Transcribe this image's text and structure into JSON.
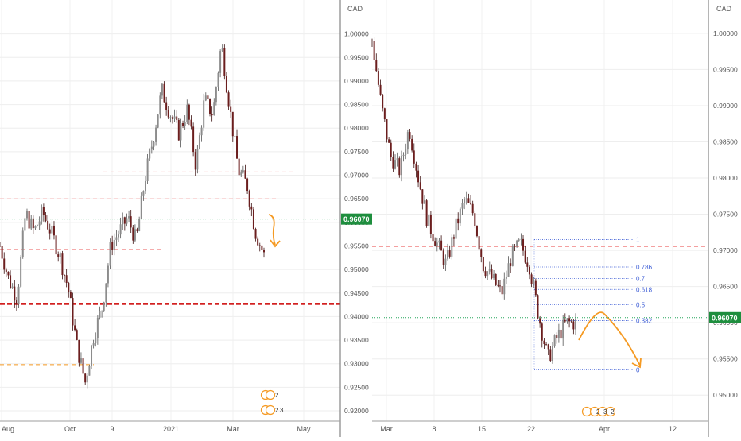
{
  "chart_data": [
    {
      "type": "candlestick",
      "currency": "CAD",
      "y_ticks": [
        "1.00000",
        "0.99500",
        "0.99000",
        "0.98500",
        "0.98000",
        "0.97500",
        "0.97000",
        "0.96500",
        "0.96000",
        "0.95500",
        "0.95000",
        "0.94500",
        "0.94000",
        "0.93500",
        "0.93000",
        "0.92500",
        "0.92000"
      ],
      "y_tick_values": [
        1.0,
        0.995,
        0.99,
        0.985,
        0.98,
        0.975,
        0.97,
        0.965,
        0.96,
        0.955,
        0.95,
        0.945,
        0.94,
        0.935,
        0.93,
        0.925,
        0.92
      ],
      "ylim": [
        0.9195,
        1.0055
      ],
      "x_labels": [
        "Aug",
        "Oct",
        "9",
        "2021",
        "Mar",
        "May"
      ],
      "current_price": "0.96070",
      "current_value": 0.9607,
      "close_path": [
        [
          "Aug",
          0.955
        ],
        [
          "",
          0.948
        ],
        [
          "",
          0.944
        ],
        [
          "",
          0.962
        ],
        [
          "",
          0.958
        ],
        [
          "",
          0.962
        ],
        [
          "",
          0.958
        ],
        [
          "",
          0.953
        ],
        [
          "Oct",
          0.946
        ],
        [
          "",
          0.934
        ],
        [
          "",
          0.926
        ],
        [
          "",
          0.936
        ],
        [
          "9",
          0.942
        ],
        [
          "",
          0.955
        ],
        [
          "",
          0.958
        ],
        [
          "",
          0.961
        ],
        [
          "",
          0.956
        ],
        [
          "",
          0.969
        ],
        [
          "",
          0.978
        ],
        [
          "2021",
          0.988
        ],
        [
          "",
          0.983
        ],
        [
          "",
          0.979
        ],
        [
          "",
          0.984
        ],
        [
          "",
          0.972
        ],
        [
          "",
          0.986
        ],
        [
          "",
          0.983
        ],
        [
          "Mar",
          0.998
        ],
        [
          "",
          0.984
        ],
        [
          "",
          0.971
        ],
        [
          "",
          0.968
        ],
        [
          "",
          0.958
        ],
        [
          "",
          0.953
        ]
      ],
      "levels": [
        {
          "value": 0.9707,
          "style": "dashed",
          "color": "#f4a0a0"
        },
        {
          "value": 0.965,
          "style": "dashed",
          "color": "#f4a0a0"
        },
        {
          "value": 0.9543,
          "style": "dashed",
          "color": "#f4a0a0"
        },
        {
          "value": 0.9427,
          "style": "bold-dashed",
          "color": "#cc0000"
        },
        {
          "value": 0.9298,
          "style": "dashed",
          "color": "#f59a23"
        }
      ],
      "projection_color": "#f59a23",
      "event_labels": [
        "2",
        "2",
        "3"
      ]
    },
    {
      "type": "candlestick",
      "currency": "CAD",
      "y_ticks": [
        "1.00000",
        "0.99500",
        "0.99000",
        "0.98500",
        "0.98000",
        "0.97500",
        "0.97000",
        "0.96500",
        "0.96000",
        "0.95500",
        "0.95000"
      ],
      "y_tick_values": [
        1.0,
        0.995,
        0.99,
        0.985,
        0.98,
        0.975,
        0.97,
        0.965,
        0.96,
        0.955,
        0.95
      ],
      "ylim": [
        0.9475,
        1.0035
      ],
      "x_labels": [
        "Mar",
        "8",
        "15",
        "22",
        "Apr",
        "12"
      ],
      "current_price": "0.96070",
      "current_value": 0.9607,
      "close_path": [
        [
          "Mar",
          0.999
        ],
        [
          "",
          0.99
        ],
        [
          "",
          0.983
        ],
        [
          "",
          0.981
        ],
        [
          "",
          0.987
        ],
        [
          "",
          0.98
        ],
        [
          "8",
          0.974
        ],
        [
          "",
          0.971
        ],
        [
          "",
          0.968
        ],
        [
          "",
          0.973
        ],
        [
          "15",
          0.977
        ],
        [
          "",
          0.975
        ],
        [
          "",
          0.968
        ],
        [
          "",
          0.966
        ],
        [
          "",
          0.964
        ],
        [
          "",
          0.969
        ],
        [
          "22",
          0.971
        ],
        [
          "",
          0.968
        ],
        [
          "",
          0.961
        ],
        [
          "",
          0.955
        ],
        [
          "",
          0.958
        ],
        [
          "",
          0.96
        ],
        [
          "",
          0.96
        ]
      ],
      "levels": [
        {
          "value": 0.9705,
          "style": "dashed",
          "color": "#f4a0a0"
        },
        {
          "value": 0.9648,
          "style": "dashed",
          "color": "#f4a0a0"
        }
      ],
      "fibonacci": [
        {
          "label": "1",
          "value": 0.9715
        },
        {
          "label": "0.786",
          "value": 0.9677
        },
        {
          "label": "0.7",
          "value": 0.9661
        },
        {
          "label": "0.618",
          "value": 0.9646
        },
        {
          "label": "0.5",
          "value": 0.9625
        },
        {
          "label": "0.382",
          "value": 0.9603
        },
        {
          "label": "0",
          "value": 0.9535
        }
      ],
      "fib_color": "#3f5fd6",
      "projection_color": "#f59a23",
      "event_labels": [
        "2",
        "3",
        "2"
      ]
    }
  ]
}
